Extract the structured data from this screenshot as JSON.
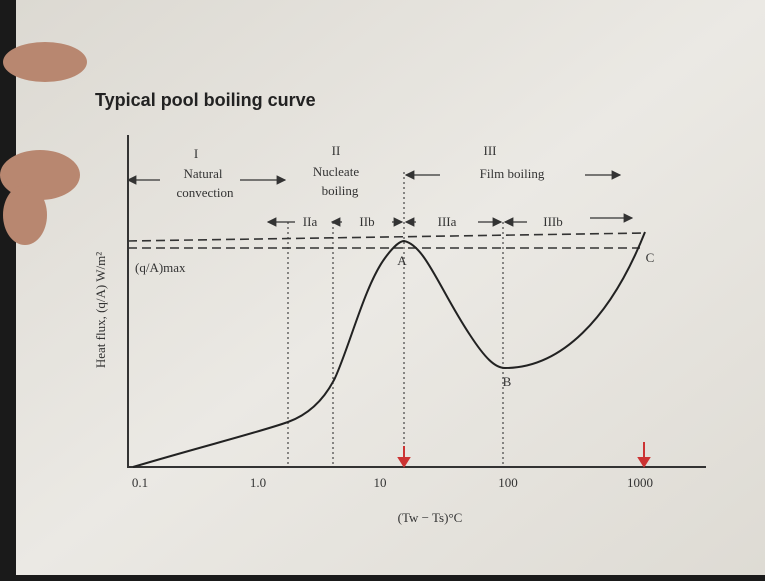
{
  "title": "Typical pool boiling curve",
  "regions": [
    {
      "numeral": "I",
      "lines": [
        "Natural",
        "convection"
      ]
    },
    {
      "numeral": "II",
      "lines": [
        "Nucleate",
        "boiling"
      ]
    },
    {
      "numeral": "III",
      "lines": [
        "Film boiling"
      ]
    }
  ],
  "subregions": [
    "IIa",
    "IIb",
    "IIIa",
    "IIIb"
  ],
  "points": [
    "A",
    "B",
    "C"
  ],
  "max_flux_label": "(q/A)max",
  "y_axis_label": "Heat flux, (q/A) W/m²",
  "x_axis_label": "(Tw − Ts)°C",
  "x_tick_labels": [
    "0.1",
    "1.0",
    "10",
    "100",
    "1000"
  ]
}
